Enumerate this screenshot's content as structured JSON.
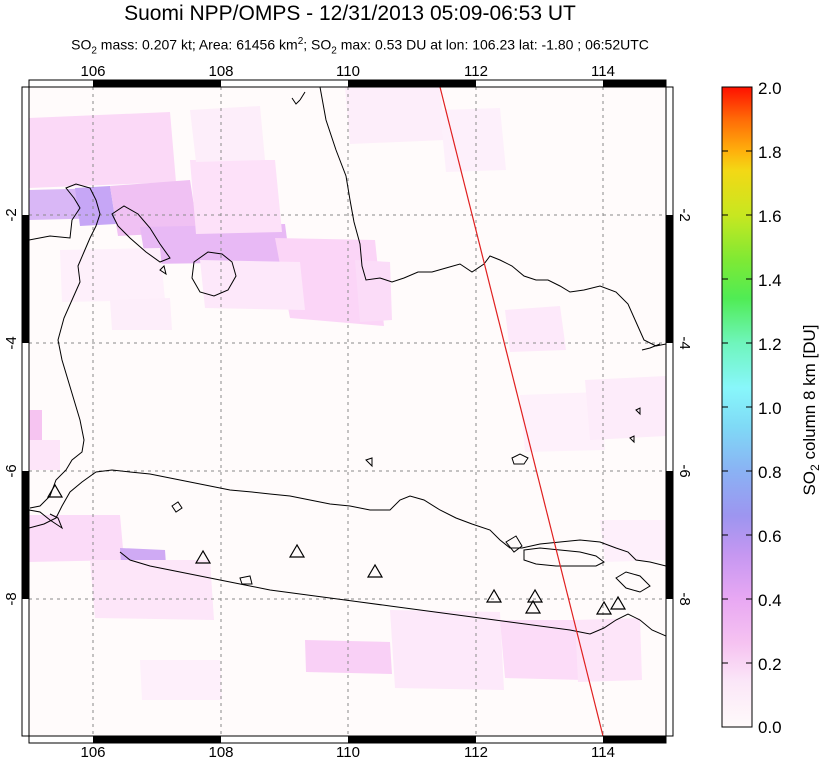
{
  "header": {
    "title": "Suomi NPP/OMPS - 12/31/2013 05:09-06:53 UT",
    "stats": {
      "mass_label": "SO",
      "mass_text": " mass: 0.207 kt; Area: 61456 km",
      "max_label": "; SO",
      "max_text": " max: 0.53 DU at lon: 106.23 lat: -1.80 ; 06:52UTC"
    }
  },
  "map": {
    "lon_ticks": [
      "106",
      "108",
      "110",
      "112",
      "114"
    ],
    "lat_ticks": [
      "-2",
      "-4",
      "-6",
      "-8"
    ],
    "lon_range": [
      105,
      115
    ],
    "lat_range": [
      -10,
      0
    ]
  },
  "colorbar": {
    "label_main": "SO",
    "label_sub": "2",
    "label_rest": " column 8 km [DU]",
    "ticks": [
      "2.0",
      "1.8",
      "1.6",
      "1.4",
      "1.2",
      "1.0",
      "0.8",
      "0.6",
      "0.4",
      "0.2",
      "0.0"
    ],
    "range": [
      0,
      2
    ],
    "colors": [
      "#fffafa",
      "#f7c8f2",
      "#e6a4f4",
      "#b894f0",
      "#8f9cf5",
      "#7fd7f5",
      "#86f7ff",
      "#6ef7a6",
      "#52ec4e",
      "#a6e92d",
      "#e7e51f",
      "#ffb20d",
      "#ff6d07",
      "#ff1100"
    ]
  },
  "volcano_icon": "triangle-icon"
}
